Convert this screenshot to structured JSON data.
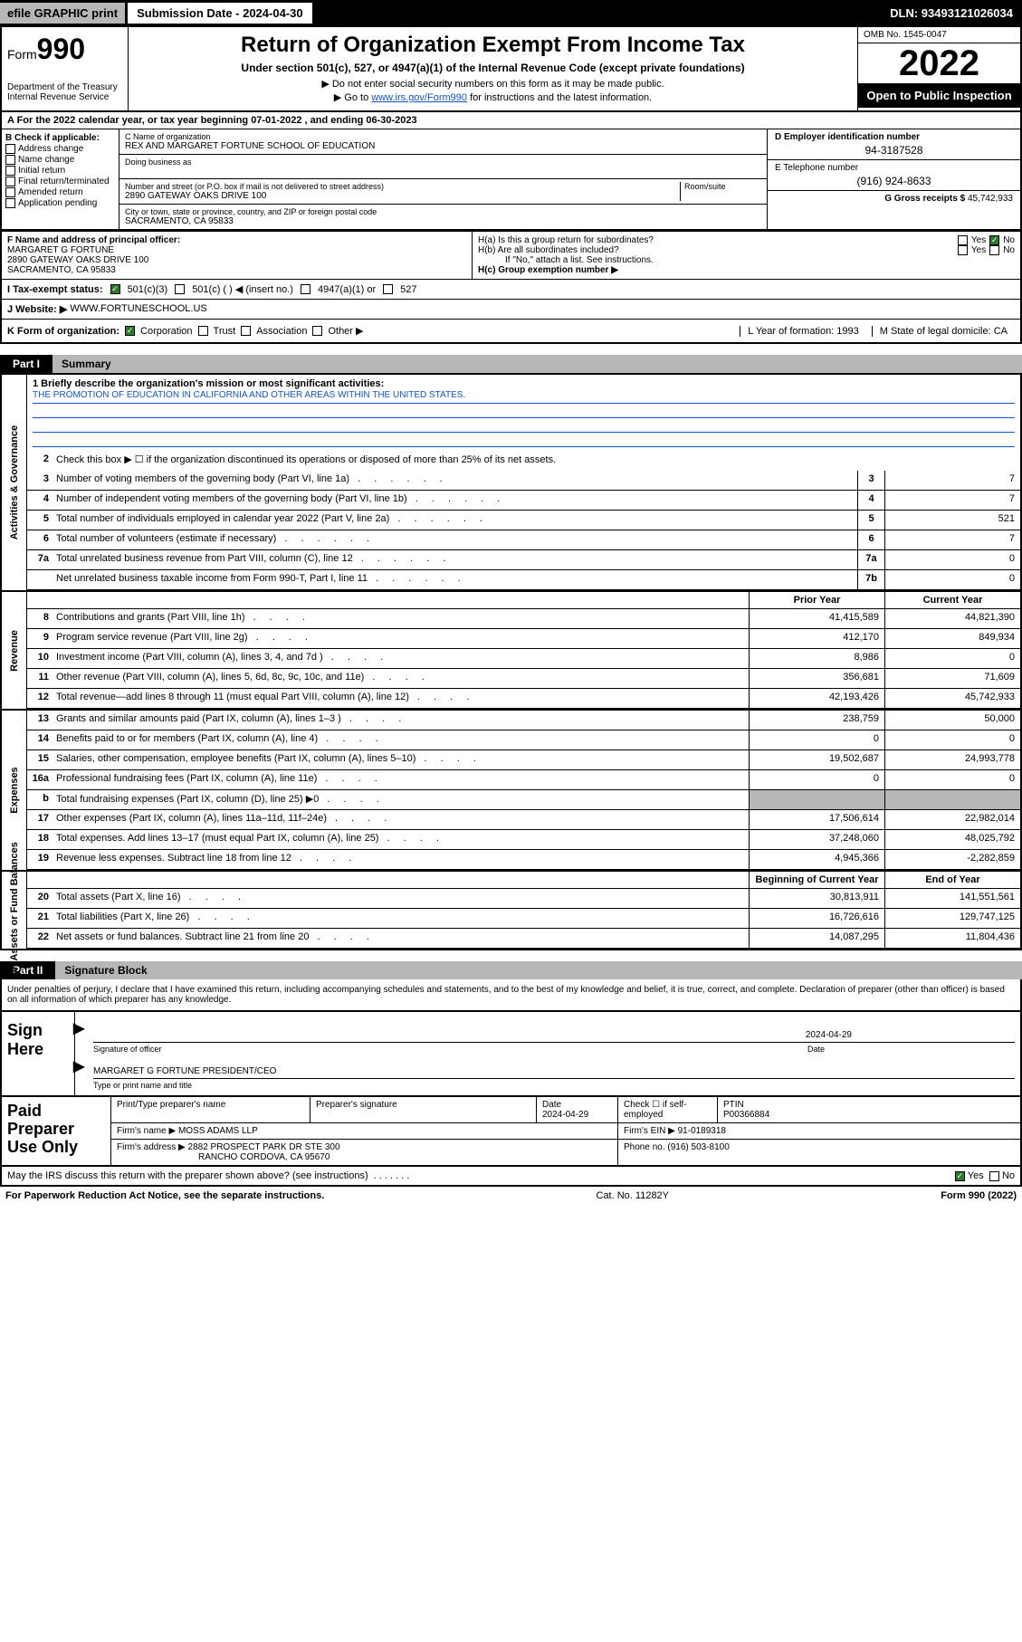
{
  "topbar": {
    "efile": "efile GRAPHIC print",
    "submission_label": "Submission Date - 2024-04-30",
    "dln": "DLN: 93493121026034"
  },
  "header": {
    "form_word": "Form",
    "form_num": "990",
    "dept": "Department of the Treasury\nInternal Revenue Service",
    "title": "Return of Organization Exempt From Income Tax",
    "subtitle": "Under section 501(c), 527, or 4947(a)(1) of the Internal Revenue Code (except private foundations)",
    "note1": "▶ Do not enter social security numbers on this form as it may be made public.",
    "note2_pre": "▶ Go to ",
    "note2_link": "www.irs.gov/Form990",
    "note2_post": " for instructions and the latest information.",
    "omb": "OMB No. 1545-0047",
    "year": "2022",
    "open_public": "Open to Public Inspection"
  },
  "periodA": "A For the 2022 calendar year, or tax year beginning 07-01-2022   , and ending 06-30-2023",
  "boxB": {
    "title": "B Check if applicable:",
    "items": [
      "Address change",
      "Name change",
      "Initial return",
      "Final return/terminated",
      "Amended return",
      "Application pending"
    ]
  },
  "boxC": {
    "label": "C Name of organization",
    "org": "REX AND MARGARET FORTUNE SCHOOL OF EDUCATION",
    "dba_label": "Doing business as",
    "addr_label": "Number and street (or P.O. box if mail is not delivered to street address)",
    "room_label": "Room/suite",
    "addr": "2890 GATEWAY OAKS DRIVE 100",
    "city_label": "City or town, state or province, country, and ZIP or foreign postal code",
    "city": "SACRAMENTO, CA  95833"
  },
  "boxD": {
    "label": "D Employer identification number",
    "val": "94-3187528"
  },
  "boxE": {
    "label": "E Telephone number",
    "val": "(916) 924-8633"
  },
  "boxG": {
    "label": "G Gross receipts $",
    "val": "45,742,933"
  },
  "boxF": {
    "label": "F  Name and address of principal officer:",
    "name": "MARGARET G FORTUNE",
    "addr1": "2890 GATEWAY OAKS DRIVE 100",
    "addr2": "SACRAMENTO, CA  95833"
  },
  "boxH": {
    "a_label": "H(a)  Is this a group return for subordinates?",
    "b_label": "H(b)  Are all subordinates included?",
    "b_note": "If \"No,\" attach a list. See instructions.",
    "c_label": "H(c)  Group exemption number ▶",
    "yes": "Yes",
    "no": "No"
  },
  "lineI": {
    "label": "I   Tax-exempt status:",
    "opts": [
      "501(c)(3)",
      "501(c) (  ) ◀ (insert no.)",
      "4947(a)(1) or",
      "527"
    ]
  },
  "lineJ": {
    "label": "J   Website: ▶",
    "val": "WWW.FORTUNESCHOOL.US"
  },
  "lineK": {
    "label": "K Form of organization:",
    "opts": [
      "Corporation",
      "Trust",
      "Association",
      "Other ▶"
    ],
    "L": "L Year of formation: 1993",
    "M": "M State of legal domicile: CA"
  },
  "parts": {
    "p1": "Part I",
    "p1t": "Summary",
    "p2": "Part II",
    "p2t": "Signature Block"
  },
  "sideTabs": {
    "gov": "Activities & Governance",
    "rev": "Revenue",
    "exp": "Expenses",
    "net": "Net Assets or Fund Balances"
  },
  "summary": {
    "q1_label": "1  Briefly describe the organization's mission or most significant activities:",
    "q1_text": "THE PROMOTION OF EDUCATION IN CALIFORNIA AND OTHER AREAS WITHIN THE UNITED STATES.",
    "q2": "Check this box ▶ ☐  if the organization discontinued its operations or disposed of more than 25% of its net assets.",
    "rows_gov": [
      {
        "n": "3",
        "t": "Number of voting members of the governing body (Part VI, line 1a)",
        "box": "3",
        "v": "7"
      },
      {
        "n": "4",
        "t": "Number of independent voting members of the governing body (Part VI, line 1b)",
        "box": "4",
        "v": "7"
      },
      {
        "n": "5",
        "t": "Total number of individuals employed in calendar year 2022 (Part V, line 2a)",
        "box": "5",
        "v": "521"
      },
      {
        "n": "6",
        "t": "Total number of volunteers (estimate if necessary)",
        "box": "6",
        "v": "7"
      },
      {
        "n": "7a",
        "t": "Total unrelated business revenue from Part VIII, column (C), line 12",
        "box": "7a",
        "v": "0"
      },
      {
        "n": "",
        "t": "Net unrelated business taxable income from Form 990-T, Part I, line 11",
        "box": "7b",
        "v": "0"
      }
    ],
    "head_prior": "Prior Year",
    "head_curr": "Current Year",
    "rows_rev": [
      {
        "n": "8",
        "t": "Contributions and grants (Part VIII, line 1h)",
        "p": "41,415,589",
        "c": "44,821,390"
      },
      {
        "n": "9",
        "t": "Program service revenue (Part VIII, line 2g)",
        "p": "412,170",
        "c": "849,934"
      },
      {
        "n": "10",
        "t": "Investment income (Part VIII, column (A), lines 3, 4, and 7d )",
        "p": "8,986",
        "c": "0"
      },
      {
        "n": "11",
        "t": "Other revenue (Part VIII, column (A), lines 5, 6d, 8c, 9c, 10c, and 11e)",
        "p": "356,681",
        "c": "71,609"
      },
      {
        "n": "12",
        "t": "Total revenue—add lines 8 through 11 (must equal Part VIII, column (A), line 12)",
        "p": "42,193,426",
        "c": "45,742,933"
      }
    ],
    "rows_exp": [
      {
        "n": "13",
        "t": "Grants and similar amounts paid (Part IX, column (A), lines 1–3 )",
        "p": "238,759",
        "c": "50,000"
      },
      {
        "n": "14",
        "t": "Benefits paid to or for members (Part IX, column (A), line 4)",
        "p": "0",
        "c": "0"
      },
      {
        "n": "15",
        "t": "Salaries, other compensation, employee benefits (Part IX, column (A), lines 5–10)",
        "p": "19,502,687",
        "c": "24,993,778"
      },
      {
        "n": "16a",
        "t": "Professional fundraising fees (Part IX, column (A), line 11e)",
        "p": "0",
        "c": "0"
      },
      {
        "n": "b",
        "t": "Total fundraising expenses (Part IX, column (D), line 25) ▶0",
        "p": "",
        "c": "",
        "gray": true
      },
      {
        "n": "17",
        "t": "Other expenses (Part IX, column (A), lines 11a–11d, 11f–24e)",
        "p": "17,506,614",
        "c": "22,982,014"
      },
      {
        "n": "18",
        "t": "Total expenses. Add lines 13–17 (must equal Part IX, column (A), line 25)",
        "p": "37,248,060",
        "c": "48,025,792"
      },
      {
        "n": "19",
        "t": "Revenue less expenses. Subtract line 18 from line 12",
        "p": "4,945,366",
        "c": "-2,282,859"
      }
    ],
    "head_beg": "Beginning of Current Year",
    "head_end": "End of Year",
    "rows_net": [
      {
        "n": "20",
        "t": "Total assets (Part X, line 16)",
        "p": "30,813,911",
        "c": "141,551,561"
      },
      {
        "n": "21",
        "t": "Total liabilities (Part X, line 26)",
        "p": "16,726,616",
        "c": "129,747,125"
      },
      {
        "n": "22",
        "t": "Net assets or fund balances. Subtract line 21 from line 20",
        "p": "14,087,295",
        "c": "11,804,436"
      }
    ]
  },
  "sig": {
    "declare": "Under penalties of perjury, I declare that I have examined this return, including accompanying schedules and statements, and to the best of my knowledge and belief, it is true, correct, and complete. Declaration of preparer (other than officer) is based on all information of which preparer has any knowledge.",
    "sign_here": "Sign Here",
    "sig_officer": "Signature of officer",
    "date": "Date",
    "date_val": "2024-04-29",
    "name_title": "MARGARET G FORTUNE  PRESIDENT/CEO",
    "type_or_print": "Type or print name and title"
  },
  "paid": {
    "title": "Paid Preparer Use Only",
    "h1": "Print/Type preparer's name",
    "h2": "Preparer's signature",
    "h3": "Date",
    "h3v": "2024-04-29",
    "h4": "Check ☐ if self-employed",
    "h5": "PTIN",
    "h5v": "P00366884",
    "firm_name_l": "Firm's name    ▶",
    "firm_name": "MOSS ADAMS LLP",
    "firm_ein_l": "Firm's EIN ▶",
    "firm_ein": "91-0189318",
    "firm_addr_l": "Firm's address ▶",
    "firm_addr1": "2882 PROSPECT PARK DR STE 300",
    "firm_addr2": "RANCHO CORDOVA, CA  95670",
    "phone_l": "Phone no.",
    "phone": "(916) 503-8100"
  },
  "bottom": {
    "discuss": "May the IRS discuss this return with the preparer shown above? (see instructions)",
    "yes": "Yes",
    "no": "No",
    "paperwork": "For Paperwork Reduction Act Notice, see the separate instructions.",
    "cat": "Cat. No. 11282Y",
    "formv": "Form 990 (2022)"
  },
  "colors": {
    "link": "#1155cc",
    "gray": "#b7b7b7",
    "green": "#2a7a2a"
  }
}
